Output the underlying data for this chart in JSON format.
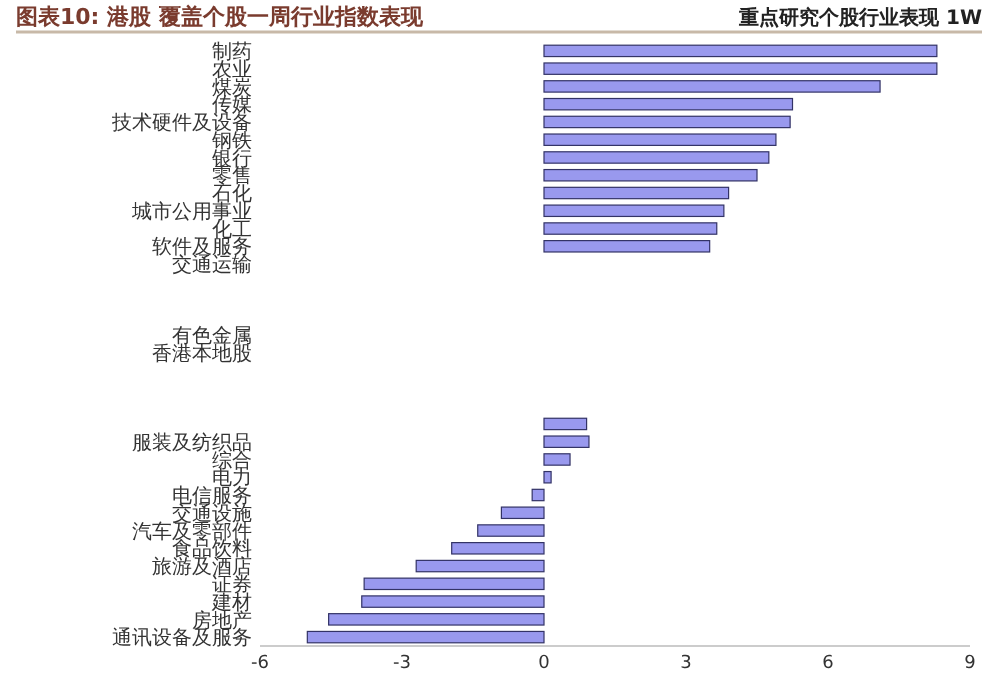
{
  "chart_data": {
    "type": "bar",
    "orientation": "horizontal",
    "title": "图表10: 港股 覆盖个股一周行业指数表现",
    "subtitle": "重点研究个股行业表现 1W",
    "categories": [
      "制药",
      "农业",
      "煤炭",
      "传媒",
      "技术硬件及设备",
      "钢铁",
      "银行",
      "零售",
      "石化",
      "城市公用事业",
      "化工",
      "软件及服务",
      "交通运输",
      null,
      null,
      null,
      "有色金属",
      "香港本地股",
      null,
      null,
      null,
      null,
      "服装及纺织品",
      "综合",
      "电力",
      "电信服务",
      "交通设施",
      "汽车及零部件",
      "食品饮料",
      "旅游及酒店",
      "证券",
      "建材",
      "房地产",
      "通讯设备及服务"
    ],
    "values": [
      8.3,
      8.3,
      7.1,
      5.25,
      5.2,
      4.9,
      4.75,
      4.5,
      3.9,
      3.8,
      3.65,
      3.5,
      null,
      null,
      null,
      null,
      null,
      null,
      null,
      null,
      null,
      0.9,
      0.95,
      0.55,
      0.15,
      -0.25,
      -0.9,
      -1.4,
      -1.95,
      -2.7,
      -3.8,
      -3.85,
      -4.55,
      -5.0
    ],
    "color": "#9999ee",
    "xlim": [
      -6,
      9
    ],
    "xticks": [
      -6,
      -3,
      0,
      3,
      6,
      9
    ],
    "grid": false
  }
}
